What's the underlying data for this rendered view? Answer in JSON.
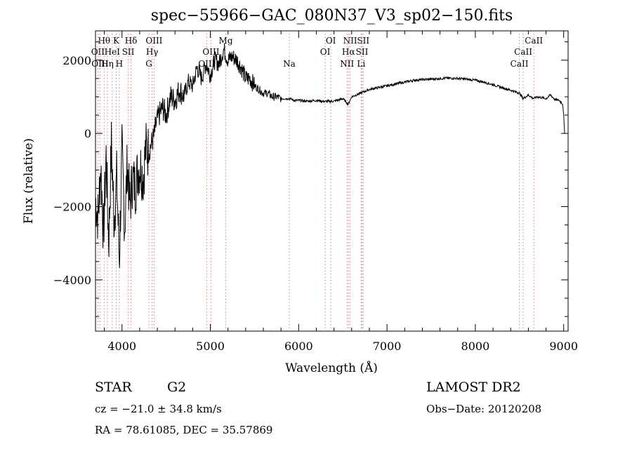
{
  "chart_data": {
    "type": "line",
    "title": "spec−55966−GAC_080N37_V3_sp02−150.fits",
    "xlabel": "Wavelength (Å)",
    "ylabel": "Flux (relative)",
    "xlim": [
      3700,
      9050
    ],
    "ylim": [
      -5400,
      2800
    ],
    "xticks": [
      4000,
      5000,
      6000,
      7000,
      8000,
      9000
    ],
    "xtick_labels": [
      "4000",
      "5000",
      "6000",
      "7000",
      "8000",
      "9000"
    ],
    "yticks": [
      -4000,
      -2000,
      0,
      2000
    ],
    "ytick_labels": [
      "−4000",
      "−2000",
      "0",
      "2000"
    ],
    "grid": false,
    "series": [
      {
        "name": "flux",
        "x": [
          3700,
          3730,
          3760,
          3790,
          3820,
          3850,
          3880,
          3910,
          3940,
          3970,
          4000,
          4030,
          4060,
          4090,
          4120,
          4150,
          4180,
          4210,
          4240,
          4270,
          4300,
          4330,
          4360,
          4390,
          4420,
          4460,
          4500,
          4550,
          4600,
          4650,
          4700,
          4750,
          4800,
          4850,
          4900,
          4950,
          5000,
          5050,
          5100,
          5150,
          5200,
          5250,
          5300,
          5350,
          5400,
          5450,
          5500,
          5550,
          5600,
          5650,
          5700,
          5750,
          5800,
          5850,
          5900,
          5950,
          6000,
          6100,
          6200,
          6300,
          6400,
          6500,
          6560,
          6600,
          6700,
          6800,
          6900,
          7000,
          7100,
          7200,
          7300,
          7400,
          7500,
          7600,
          7700,
          7800,
          7900,
          8000,
          8100,
          8200,
          8300,
          8400,
          8500,
          8540,
          8600,
          8660,
          8700,
          8800,
          8850,
          8900,
          8950,
          8990,
          9000,
          9010
        ],
        "y": [
          -1800,
          -2300,
          -900,
          -2800,
          -600,
          -3000,
          -300,
          -2400,
          -1200,
          -3500,
          -500,
          -2600,
          -800,
          -2000,
          -1200,
          -1500,
          -1000,
          -900,
          -1200,
          -400,
          -500,
          -300,
          -100,
          300,
          500,
          700,
          500,
          1000,
          900,
          1200,
          1000,
          1400,
          1300,
          1800,
          1500,
          1900,
          1600,
          2000,
          1900,
          2300,
          2000,
          2100,
          2000,
          1800,
          1500,
          1500,
          1300,
          1200,
          1100,
          1100,
          1000,
          1000,
          950,
          950,
          950,
          900,
          900,
          880,
          900,
          870,
          880,
          950,
          800,
          1000,
          1100,
          1200,
          1250,
          1300,
          1350,
          1400,
          1450,
          1470,
          1480,
          1500,
          1510,
          1500,
          1480,
          1450,
          1400,
          1330,
          1250,
          1180,
          1100,
          950,
          1050,
          950,
          1000,
          950,
          1050,
          930,
          900,
          800,
          500,
          0
        ]
      }
    ],
    "lines": [
      {
        "label": "Hθ",
        "x": 3798,
        "row": 1
      },
      {
        "label": "OII",
        "x": 3727,
        "row": 2
      },
      {
        "label": "OIII",
        "x": 3750,
        "row": 3
      },
      {
        "label": "K",
        "x": 3934,
        "row": 1
      },
      {
        "label": "HeI",
        "x": 3889,
        "row": 2
      },
      {
        "label": "Hη",
        "x": 3835,
        "row": 3
      },
      {
        "label": "Hδ",
        "x": 4102,
        "row": 1
      },
      {
        "label": "SII",
        "x": 4070,
        "row": 2
      },
      {
        "label": "H",
        "x": 3969,
        "row": 3
      },
      {
        "label": "OIII",
        "x": 4363,
        "row": 1
      },
      {
        "label": "Hγ",
        "x": 4341,
        "row": 2
      },
      {
        "label": "G",
        "x": 4305,
        "row": 3
      },
      {
        "label": "OIII",
        "x": 5007,
        "row": 2
      },
      {
        "label": "OIII",
        "x": 4959,
        "row": 3
      },
      {
        "label": "Mg",
        "x": 5175,
        "row": 1
      },
      {
        "label": "Na",
        "x": 5894,
        "row": 3
      },
      {
        "label": "OI",
        "x": 6364,
        "row": 1
      },
      {
        "label": "OI",
        "x": 6300,
        "row": 2
      },
      {
        "label": "NII",
        "x": 6583,
        "row": 1
      },
      {
        "label": "Hα",
        "x": 6563,
        "row": 2
      },
      {
        "label": "NII",
        "x": 6548,
        "row": 3
      },
      {
        "label": "SII",
        "x": 6731,
        "row": 1
      },
      {
        "label": "SII",
        "x": 6717,
        "row": 2
      },
      {
        "label": "Li",
        "x": 6707,
        "row": 3
      },
      {
        "label": "CaII",
        "x": 8662,
        "row": 1
      },
      {
        "label": "CaII",
        "x": 8542,
        "row": 2
      },
      {
        "label": "CaII",
        "x": 8498,
        "row": 3
      }
    ]
  },
  "info": {
    "object_class": "STAR",
    "subclass": "G2",
    "survey": "LAMOST DR2",
    "cz": "cz = −21.0 ± 34.8 km/s",
    "obs_date": "Obs−Date: 20120208",
    "coords": "RA =  78.61085, DEC =  35.57869"
  }
}
